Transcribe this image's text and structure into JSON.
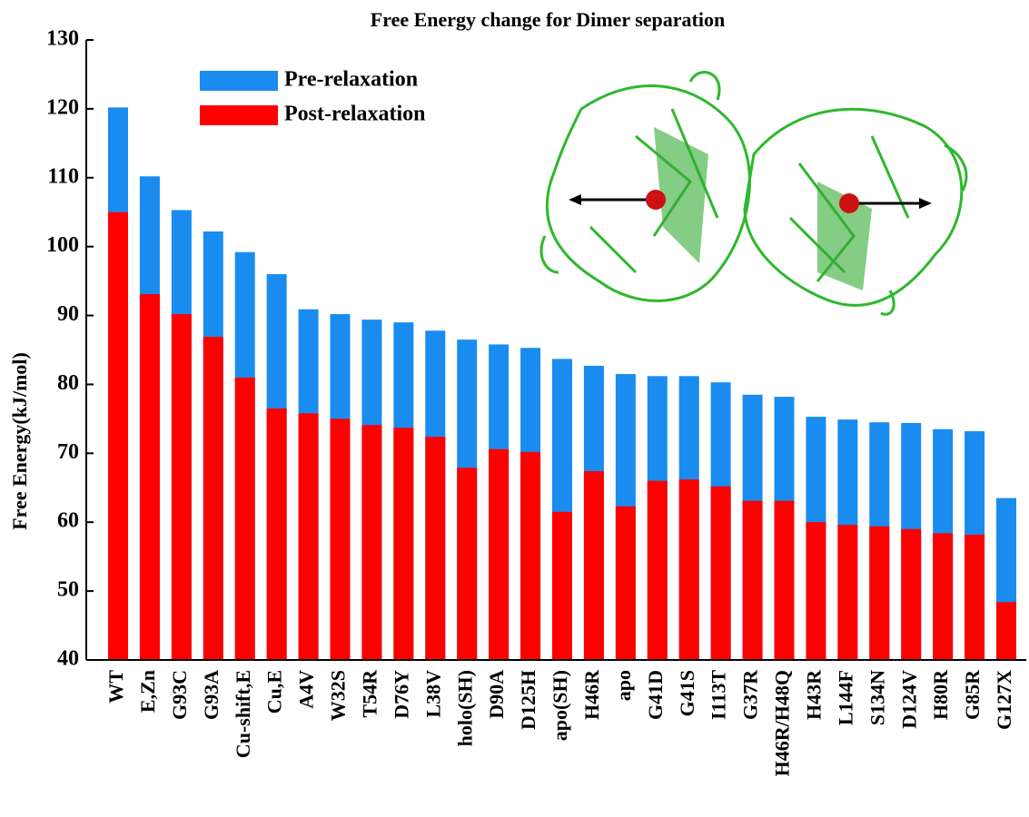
{
  "chart_data": {
    "type": "bar",
    "title": "Free Energy change for Dimer separation",
    "y_label": "Free Energy(kJ/mol)",
    "categories": [
      "WT",
      "E,Zn",
      "G93C",
      "G93A",
      "Cu-shift,E",
      "Cu,E",
      "A4V",
      "W32S",
      "T54R",
      "D76Y",
      "L38V",
      "holo(SH)",
      "D90A",
      "D125H",
      "apo(SH)",
      "H46R",
      "apo",
      "G41D",
      "G41S",
      "I113T",
      "G37R",
      "H46R/H48Q",
      "H43R",
      "L144F",
      "S134N",
      "D124V",
      "H80R",
      "G85R",
      "G127X"
    ],
    "series": [
      {
        "name": "Pre-relaxation",
        "color": "#1a8cf0",
        "values": [
          120.2,
          110.2,
          105.3,
          102.2,
          99.2,
          96,
          90.9,
          90.2,
          89.4,
          89,
          87.8,
          86.5,
          85.8,
          85.3,
          83.7,
          82.7,
          81.5,
          81.2,
          81.2,
          80.3,
          78.5,
          78.2,
          75.3,
          74.9,
          74.5,
          74.4,
          73.5,
          73.2,
          63.5
        ]
      },
      {
        "name": "Post-relaxation",
        "color": "#ff0000",
        "values": [
          105,
          93.1,
          90.2,
          86.9,
          81,
          76.5,
          75.8,
          75,
          74.1,
          73.7,
          72.4,
          67.9,
          70.6,
          70.2,
          61.5,
          67.4,
          62.3,
          66,
          66.2,
          65.2,
          63.1,
          63.1,
          60,
          59.6,
          59.4,
          59,
          58.4,
          58.2,
          48.4
        ]
      }
    ],
    "ylim": [
      40,
      130
    ],
    "yticks": [
      40,
      50,
      60,
      70,
      80,
      90,
      100,
      110,
      120,
      130
    ]
  }
}
